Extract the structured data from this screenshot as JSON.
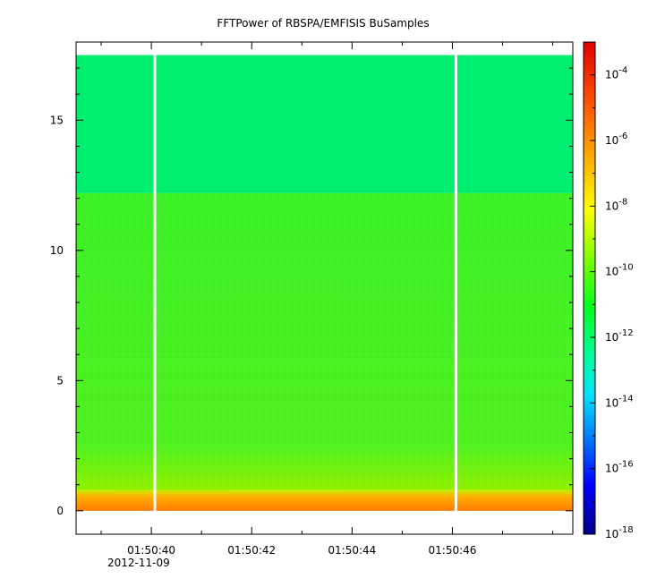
{
  "chart_data": {
    "type": "heatmap",
    "title": "FFTPower of RBSPA/EMFISIS  BuSamples",
    "xlabel": "",
    "ylabel": "",
    "x_ticks": [
      "01:50:40",
      "01:50:42",
      "01:50:44",
      "01:50:46"
    ],
    "x_date_label": "2012-11-09",
    "x_range_seconds": [
      38.5,
      48.4
    ],
    "y_range": [
      -0.9,
      18.0
    ],
    "y_ticks": [
      0,
      5,
      10,
      15
    ],
    "data_y_range": [
      0,
      17.5
    ],
    "colorbar": {
      "scale": "log",
      "range": [
        1e-18,
        0.001
      ],
      "tick_labels": [
        {
          "base": "10",
          "exp": "-4"
        },
        {
          "base": "10",
          "exp": "-6"
        },
        {
          "base": "10",
          "exp": "-8"
        },
        {
          "base": "10",
          "exp": "-10"
        },
        {
          "base": "10",
          "exp": "-12"
        },
        {
          "base": "10",
          "exp": "-14"
        },
        {
          "base": "10",
          "exp": "-16"
        },
        {
          "base": "10",
          "exp": "-18"
        }
      ],
      "tick_exponents": [
        -4,
        -6,
        -8,
        -10,
        -12,
        -14,
        -16,
        -18
      ],
      "colors": [
        "#00008b",
        "#0000ff",
        "#00a0ff",
        "#00ffff",
        "#00ff80",
        "#00ff00",
        "#80ff00",
        "#ffff00",
        "#ffa500",
        "#ff4000",
        "#e00000"
      ]
    },
    "regions": [
      {
        "y_from": 0,
        "y_to": 0.8,
        "level": "1e-7",
        "color": "#ff8c00"
      },
      {
        "y_from": 0.8,
        "y_to": 12.2,
        "level": "1e-10",
        "color": "#40f020"
      },
      {
        "y_from": 12.2,
        "y_to": 17.5,
        "level": "1e-12",
        "color": "#00ee70"
      }
    ],
    "data_gaps_seconds": [
      40.07,
      46.07
    ]
  }
}
